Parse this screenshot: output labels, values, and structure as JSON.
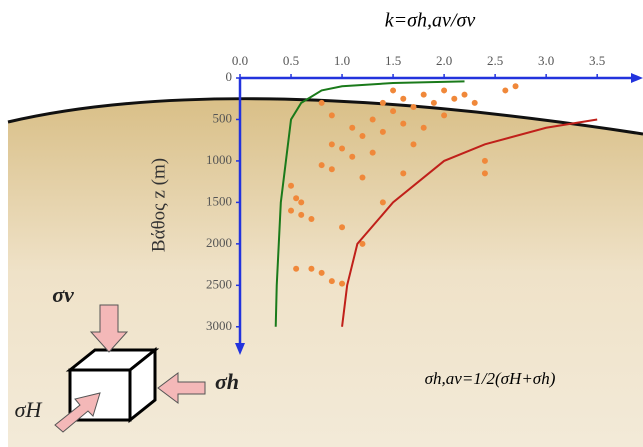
{
  "chart_data": {
    "type": "scatter",
    "title": "k=σh,av/σv",
    "y_label": "Βάθος z (m)",
    "y_inverted": true,
    "xlim": [
      0,
      3.9
    ],
    "ylim": [
      0,
      3280
    ],
    "xticks": [
      {
        "value": 0,
        "label": "0.0"
      },
      0.5,
      {
        "value": 1,
        "label": "1.0"
      },
      1.5,
      {
        "value": 2,
        "label": "2.0"
      },
      2.5,
      {
        "value": 3,
        "label": "3.0"
      },
      3.5
    ],
    "yticks": [
      0,
      500,
      1000,
      1500,
      2000,
      2500,
      3000
    ],
    "axis_color": "#2233dd",
    "series": [
      {
        "mode": "markers",
        "color": "#f0883a",
        "x": [
          0.5,
          0.55,
          0.5,
          0.6,
          0.6,
          0.7,
          0.55,
          0.7,
          0.8,
          0.9,
          1.0,
          0.8,
          0.9,
          0.9,
          0.8,
          0.9,
          1.0,
          1.1,
          1.1,
          1.2,
          1.2,
          1.3,
          1.3,
          1.4,
          1.4,
          1.5,
          1.5,
          1.6,
          1.6,
          1.7,
          1.7,
          1.8,
          1.8,
          1.9,
          2.0,
          2.0,
          2.1,
          2.2,
          2.3,
          2.4,
          2.4,
          2.6,
          2.7,
          1.4,
          1.0,
          1.2,
          1.6
        ],
        "values": [
          1300,
          1450,
          1600,
          1500,
          1650,
          1700,
          2300,
          2300,
          2350,
          2450,
          2480,
          300,
          450,
          800,
          1050,
          1100,
          850,
          600,
          950,
          700,
          1200,
          500,
          900,
          300,
          650,
          150,
          400,
          250,
          550,
          350,
          800,
          200,
          600,
          300,
          450,
          150,
          250,
          200,
          300,
          1000,
          1150,
          150,
          100,
          1500,
          1800,
          2000,
          1150
        ]
      },
      {
        "mode": "line",
        "color": "#1a7a1a",
        "x": [
          2.2,
          1.5,
          1.0,
          0.8,
          0.6,
          0.5,
          0.45,
          0.4,
          0.38,
          0.36,
          0.35
        ],
        "values": [
          40,
          60,
          100,
          150,
          300,
          500,
          1000,
          1500,
          2000,
          2500,
          3000
        ]
      },
      {
        "mode": "line",
        "color": "#c0201a",
        "x": [
          3.5,
          3.0,
          2.4,
          2.0,
          1.5,
          1.15,
          1.05,
          1.0
        ],
        "values": [
          500,
          600,
          800,
          1000,
          1500,
          2000,
          2500,
          3000
        ]
      }
    ],
    "annotations": {
      "formula": "σh,av=1/2(σH+σh)",
      "sigma_v": "σv",
      "sigma_h": "σh",
      "sigma_H": "σH"
    }
  }
}
